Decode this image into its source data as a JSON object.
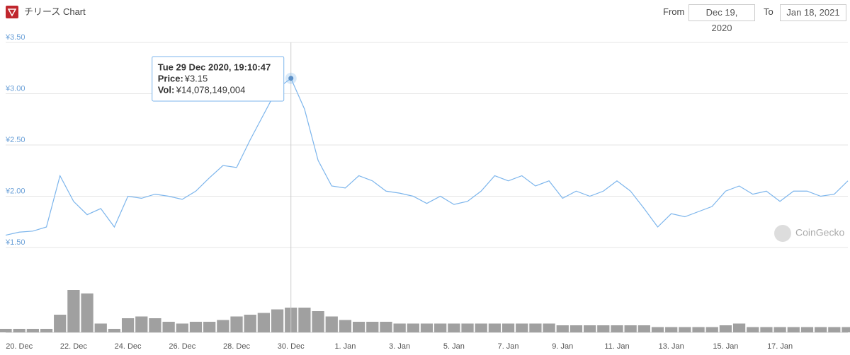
{
  "header": {
    "title": "チリース Chart",
    "from_label": "From",
    "from_date": "Dec 19, 2020",
    "to_label": "To",
    "to_date": "Jan 18, 2021"
  },
  "watermark": "CoinGecko",
  "tooltip": {
    "title": "Tue 29 Dec 2020, 19:10:47",
    "price_label": "Price:",
    "price": "¥3.15",
    "vol_label": "Vol:",
    "vol": "¥14,078,149,004"
  },
  "chart_data": {
    "type": "line",
    "categories": [
      null,
      "20. Dec",
      null,
      null,
      null,
      "22. Dec",
      null,
      null,
      null,
      "24. Dec",
      null,
      null,
      null,
      "26. Dec",
      null,
      null,
      null,
      "28. Dec",
      null,
      null,
      null,
      "30. Dec",
      null,
      null,
      null,
      "1. Jan",
      null,
      null,
      null,
      "3. Jan",
      null,
      null,
      null,
      "5. Jan",
      null,
      null,
      null,
      "7. Jan",
      null,
      null,
      null,
      "9. Jan",
      null,
      null,
      null,
      "11. Jan",
      null,
      null,
      null,
      "13. Jan",
      null,
      null,
      null,
      "15. Jan",
      null,
      null,
      null,
      "17. Jan",
      null,
      null,
      null,
      null,
      null
    ],
    "series": [
      {
        "name": "Price",
        "color": "#7cb5ec",
        "values": [
          1.62,
          1.65,
          1.66,
          1.7,
          2.2,
          1.95,
          1.82,
          1.88,
          1.7,
          2.0,
          1.98,
          2.02,
          2.0,
          1.97,
          2.05,
          2.18,
          2.3,
          2.28,
          2.55,
          2.8,
          3.05,
          3.15,
          2.85,
          2.35,
          2.1,
          2.08,
          2.2,
          2.15,
          2.05,
          2.03,
          2.0,
          1.93,
          2.0,
          1.92,
          1.95,
          2.05,
          2.2,
          2.15,
          2.2,
          2.1,
          2.15,
          1.98,
          2.05,
          2.0,
          2.05,
          2.15,
          2.05,
          1.88,
          1.7,
          1.83,
          1.8,
          1.85,
          1.9,
          2.05,
          2.1,
          2.02,
          2.05,
          1.95,
          2.05,
          2.05,
          2.0,
          2.02,
          2.15
        ]
      },
      {
        "name": "Vol",
        "color": "#a0a0a0",
        "axis": "y2",
        "values": [
          2000000000,
          2000000000,
          2000000000,
          2000000000,
          10000000000,
          24000000000,
          22000000000,
          5000000000,
          2000000000,
          8000000000,
          9000000000,
          8000000000,
          6000000000,
          5000000000,
          6000000000,
          6000000000,
          7000000000,
          9000000000,
          10000000000,
          11000000000,
          13000000000,
          14000000000,
          14000000000,
          12000000000,
          9000000000,
          7000000000,
          6000000000,
          6000000000,
          6000000000,
          5000000000,
          5000000000,
          5000000000,
          5000000000,
          5000000000,
          5000000000,
          5000000000,
          5000000000,
          5000000000,
          5000000000,
          5000000000,
          5000000000,
          4000000000,
          4000000000,
          4000000000,
          4000000000,
          4000000000,
          4000000000,
          4000000000,
          3000000000,
          3000000000,
          3000000000,
          3000000000,
          3000000000,
          4000000000,
          5000000000,
          3000000000,
          3000000000,
          3000000000,
          3000000000,
          3000000000,
          3000000000,
          3000000000,
          3000000000
        ]
      }
    ],
    "ylim": [
      1.5,
      3.5
    ],
    "yticks": [
      {
        "value": 1.5,
        "label": "¥1.50"
      },
      {
        "value": 2,
        "label": "¥2.00"
      },
      {
        "value": 2.5,
        "label": "¥2.50"
      },
      {
        "value": 3,
        "label": "¥3.00"
      },
      {
        "value": 3.5,
        "label": "¥3.50"
      }
    ],
    "y2lim": [
      0,
      40000000000
    ],
    "grid": true
  }
}
